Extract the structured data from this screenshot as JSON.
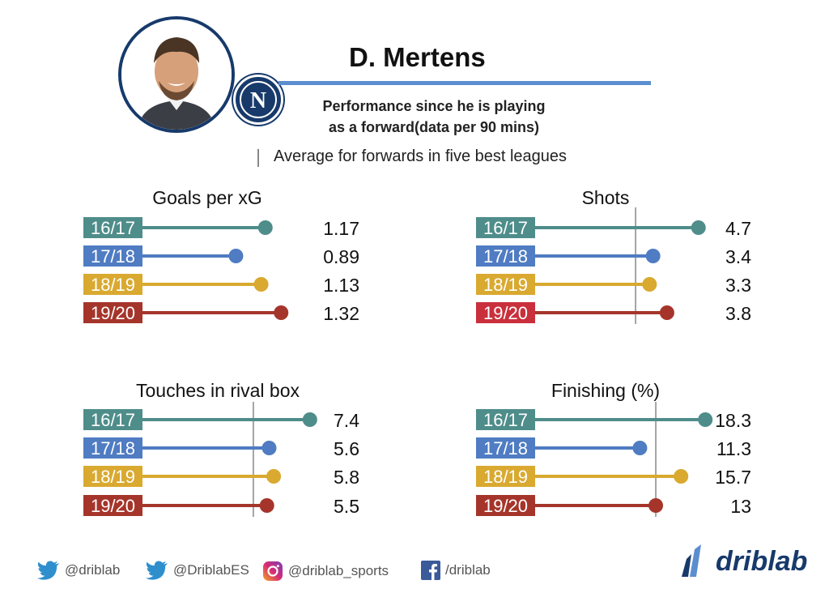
{
  "header": {
    "player_name": "D. Mertens",
    "subtitle_line1": "Performance since he is playing",
    "subtitle_line2": "as a forward(data per 90 mins)",
    "legend_note": "Average for forwards in five best leagues",
    "club_badge_letter": "N"
  },
  "colors": {
    "navy": "#173a6b",
    "title_line": "#5b8ed0",
    "teal": "#4e8d8a",
    "blue": "#4f7cc2",
    "gold": "#d9a930",
    "red": "#a5352b",
    "crimson": "#c9303c",
    "avg_line": "#888888"
  },
  "chart_data": [
    {
      "type": "bar",
      "title": "Goals per xG",
      "categories": [
        "16/17",
        "17/18",
        "18/19",
        "19/20"
      ],
      "values": [
        1.17,
        0.89,
        1.13,
        1.32
      ],
      "labels": [
        "1.17",
        "0.89",
        "1.13",
        "1.32"
      ],
      "xlim": [
        0,
        1.48
      ],
      "average": null,
      "label_colors": [
        "teal",
        "blue",
        "gold",
        "red"
      ]
    },
    {
      "type": "bar",
      "title": "Shots",
      "categories": [
        "16/17",
        "17/18",
        "18/19",
        "19/20"
      ],
      "values": [
        4.7,
        3.4,
        3.3,
        3.8
      ],
      "labels": [
        "4.7",
        "3.4",
        "3.3",
        "3.8"
      ],
      "xlim": [
        0,
        5.1
      ],
      "average": 2.9,
      "label_colors": [
        "teal",
        "blue",
        "gold",
        "crimson"
      ]
    },
    {
      "type": "bar",
      "title": "Touches in rival box",
      "categories": [
        "16/17",
        "17/18",
        "18/19",
        "19/20"
      ],
      "values": [
        7.4,
        5.6,
        5.8,
        5.5
      ],
      "labels": [
        "7.4",
        "5.6",
        "5.8",
        "5.5"
      ],
      "xlim": [
        0,
        7.55
      ],
      "average": 4.9,
      "label_colors": [
        "teal",
        "blue",
        "gold",
        "red"
      ]
    },
    {
      "type": "bar",
      "title": "Finishing (%)",
      "categories": [
        "16/17",
        "17/18",
        "18/19",
        "19/20"
      ],
      "values": [
        18.3,
        11.3,
        15.7,
        13
      ],
      "labels": [
        "18.3",
        "11.3",
        "15.7",
        "13"
      ],
      "xlim": [
        0,
        18.8
      ],
      "average": 13.0,
      "label_colors": [
        "teal",
        "blue",
        "gold",
        "red"
      ]
    }
  ],
  "footer": {
    "twitter1": "@driblab",
    "twitter2": "@DriblabES",
    "instagram": "@driblab_sports",
    "facebook": "/driblab",
    "brand": "driblab"
  }
}
